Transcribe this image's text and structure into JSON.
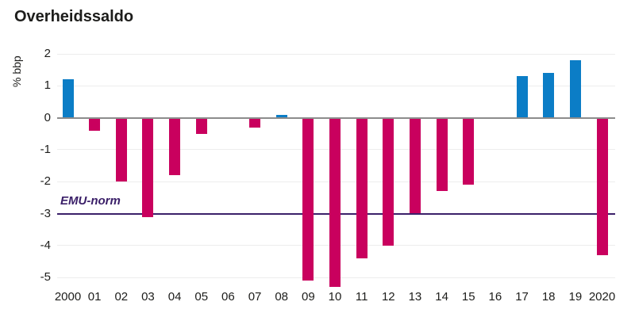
{
  "title": "Overheidssaldo",
  "chart_data": {
    "type": "bar",
    "title": "Overheidssaldo",
    "ylabel": "% bbp",
    "xlabel": "",
    "categories": [
      "2000",
      "01",
      "02",
      "03",
      "04",
      "05",
      "06",
      "07",
      "08",
      "09",
      "10",
      "11",
      "12",
      "13",
      "14",
      "15",
      "16",
      "17",
      "18",
      "19",
      "2020"
    ],
    "values": [
      1.2,
      -0.4,
      -2.0,
      -3.1,
      -1.8,
      -0.5,
      0,
      -0.3,
      0.1,
      -5.1,
      -5.3,
      -4.4,
      -4.0,
      -3.0,
      -2.3,
      -2.1,
      0,
      1.3,
      1.4,
      1.8,
      -4.3
    ],
    "yticks": [
      2,
      1,
      0,
      -1,
      -2,
      -3,
      -4,
      -5
    ],
    "ylim": [
      -5.5,
      2
    ],
    "grid": "horizontal",
    "legend": "none",
    "reference_line": {
      "label": "EMU-norm",
      "value": -3,
      "color": "#3b2069"
    },
    "colors": {
      "positive": "#0b7dc6",
      "negative": "#c9005e"
    },
    "zero_line_color": "#8c8c8c",
    "gridline_color": "#ededed"
  }
}
